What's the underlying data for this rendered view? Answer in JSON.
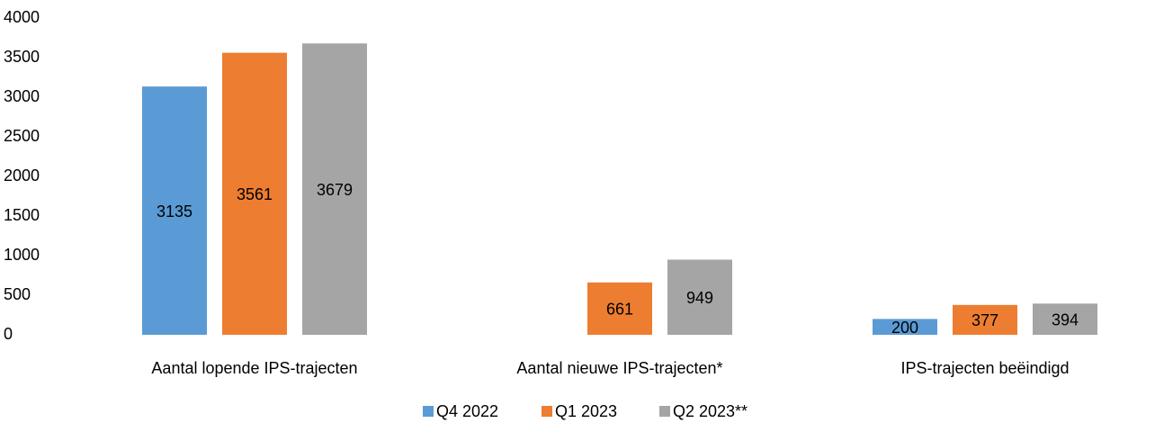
{
  "chart_data": {
    "type": "bar",
    "categories": [
      "Aantal lopende IPS-trajecten",
      "Aantal nieuwe IPS-trajecten*",
      "IPS-trajecten beëindigd"
    ],
    "series": [
      {
        "name": "Q4 2022",
        "color": "#5b9bd5",
        "values": [
          3135,
          null,
          200
        ]
      },
      {
        "name": "Q1 2023",
        "color": "#ed7d31",
        "values": [
          3561,
          661,
          377
        ]
      },
      {
        "name": "Q2 2023**",
        "color": "#a5a5a5",
        "values": [
          3679,
          949,
          394
        ]
      }
    ],
    "ylim": [
      0,
      4000
    ],
    "yticks": [
      0,
      500,
      1000,
      1500,
      2000,
      2500,
      3000,
      3500,
      4000
    ],
    "grid": false,
    "legend": "bottom"
  }
}
